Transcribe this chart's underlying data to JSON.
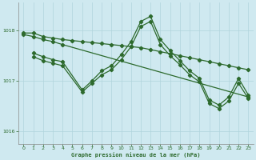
{
  "title": "Graphe pression niveau de la mer (hPa)",
  "background_color": "#cfe9f0",
  "plot_bg_color": "#cfe9f0",
  "grid_color": "#b0d4dc",
  "line_color": "#2d6a2d",
  "xlim": [
    -0.5,
    23.5
  ],
  "ylim": [
    1015.75,
    1018.55
  ],
  "yticks": [
    1016,
    1017,
    1018
  ],
  "xticks": [
    0,
    1,
    2,
    3,
    4,
    5,
    6,
    7,
    8,
    9,
    10,
    11,
    12,
    13,
    14,
    15,
    16,
    17,
    18,
    19,
    20,
    21,
    22,
    23
  ],
  "line1_x": [
    0,
    1,
    2,
    3,
    4,
    5,
    6,
    7,
    8,
    9,
    10,
    11,
    12,
    13,
    14,
    15,
    16,
    17,
    18,
    19,
    20,
    21,
    22,
    23
  ],
  "line1_y": [
    1017.95,
    1017.95,
    1017.88,
    1017.85,
    1017.82,
    1017.8,
    1017.78,
    1017.76,
    1017.74,
    1017.72,
    1017.7,
    1017.68,
    1017.66,
    1017.62,
    1017.58,
    1017.54,
    1017.5,
    1017.46,
    1017.42,
    1017.38,
    1017.34,
    1017.3,
    1017.26,
    1017.22
  ],
  "line2_x": [
    1,
    2,
    3,
    4,
    6,
    7,
    8,
    9,
    10,
    11,
    12,
    13,
    14,
    15,
    16,
    17,
    18,
    19,
    20,
    21,
    22,
    23
  ],
  "line2_y": [
    1017.55,
    1017.48,
    1017.42,
    1017.38,
    1016.82,
    1017.0,
    1017.2,
    1017.3,
    1017.52,
    1017.78,
    1018.18,
    1018.28,
    1017.82,
    1017.6,
    1017.4,
    1017.2,
    1017.05,
    1016.62,
    1016.52,
    1016.68,
    1017.05,
    1016.72
  ],
  "line3_x": [
    1,
    2,
    3,
    4,
    6,
    7,
    8,
    9,
    10,
    11,
    12,
    13,
    14,
    15,
    16,
    17,
    18,
    19,
    20,
    21,
    22,
    23
  ],
  "line3_y": [
    1017.48,
    1017.4,
    1017.35,
    1017.3,
    1016.78,
    1016.95,
    1017.12,
    1017.22,
    1017.42,
    1017.68,
    1018.08,
    1018.18,
    1017.72,
    1017.5,
    1017.32,
    1017.12,
    1016.98,
    1016.55,
    1016.45,
    1016.6,
    1016.95,
    1016.65
  ],
  "line4_x": [
    0,
    1,
    2,
    3,
    4,
    23
  ],
  "line4_y": [
    1017.92,
    1017.88,
    1017.82,
    1017.78,
    1017.72,
    1016.68
  ]
}
